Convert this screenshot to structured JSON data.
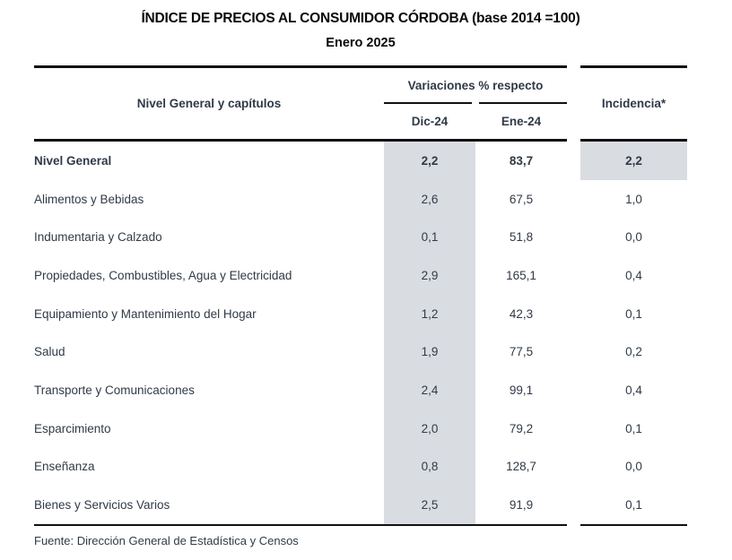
{
  "title": "ÍNDICE DE PRECIOS AL CONSUMIDOR CÓRDOBA (base 2014 =100)",
  "subtitle": "Enero 2025",
  "table": {
    "row_header": "Nivel General y capítulos",
    "col_group_header": "Variaciones % respecto",
    "sub_columns": [
      "Dic-24",
      "Ene-24"
    ],
    "incidencia_header": "Incidencia*",
    "rows": [
      {
        "label": "Nivel General",
        "dic24": "2,2",
        "ene24": "83,7",
        "incidencia": "2,2"
      },
      {
        "label": "Alimentos y Bebidas",
        "dic24": "2,6",
        "ene24": "67,5",
        "incidencia": "1,0"
      },
      {
        "label": "Indumentaria y Calzado",
        "dic24": "0,1",
        "ene24": "51,8",
        "incidencia": "0,0"
      },
      {
        "label": "Propiedades, Combustibles, Agua y Electricidad",
        "dic24": "2,9",
        "ene24": "165,1",
        "incidencia": "0,4"
      },
      {
        "label": "Equipamiento y Mantenimiento del Hogar",
        "dic24": "1,2",
        "ene24": "42,3",
        "incidencia": "0,1"
      },
      {
        "label": "Salud",
        "dic24": "1,9",
        "ene24": "77,5",
        "incidencia": "0,2"
      },
      {
        "label": "Transporte y Comunicaciones",
        "dic24": "2,4",
        "ene24": "99,1",
        "incidencia": "0,4"
      },
      {
        "label": "Esparcimiento",
        "dic24": "2,0",
        "ene24": "79,2",
        "incidencia": "0,1"
      },
      {
        "label": "Enseñanza",
        "dic24": "0,8",
        "ene24": "128,7",
        "incidencia": "0,0"
      },
      {
        "label": "Bienes y Servicios Varios",
        "dic24": "2,5",
        "ene24": "91,9",
        "incidencia": "0,1"
      }
    ]
  },
  "footer": "Fuente: Dirección General de Estadística y Censos",
  "colors": {
    "shade": "#d9dce1",
    "rule": "#111111",
    "text": "#303a47"
  }
}
